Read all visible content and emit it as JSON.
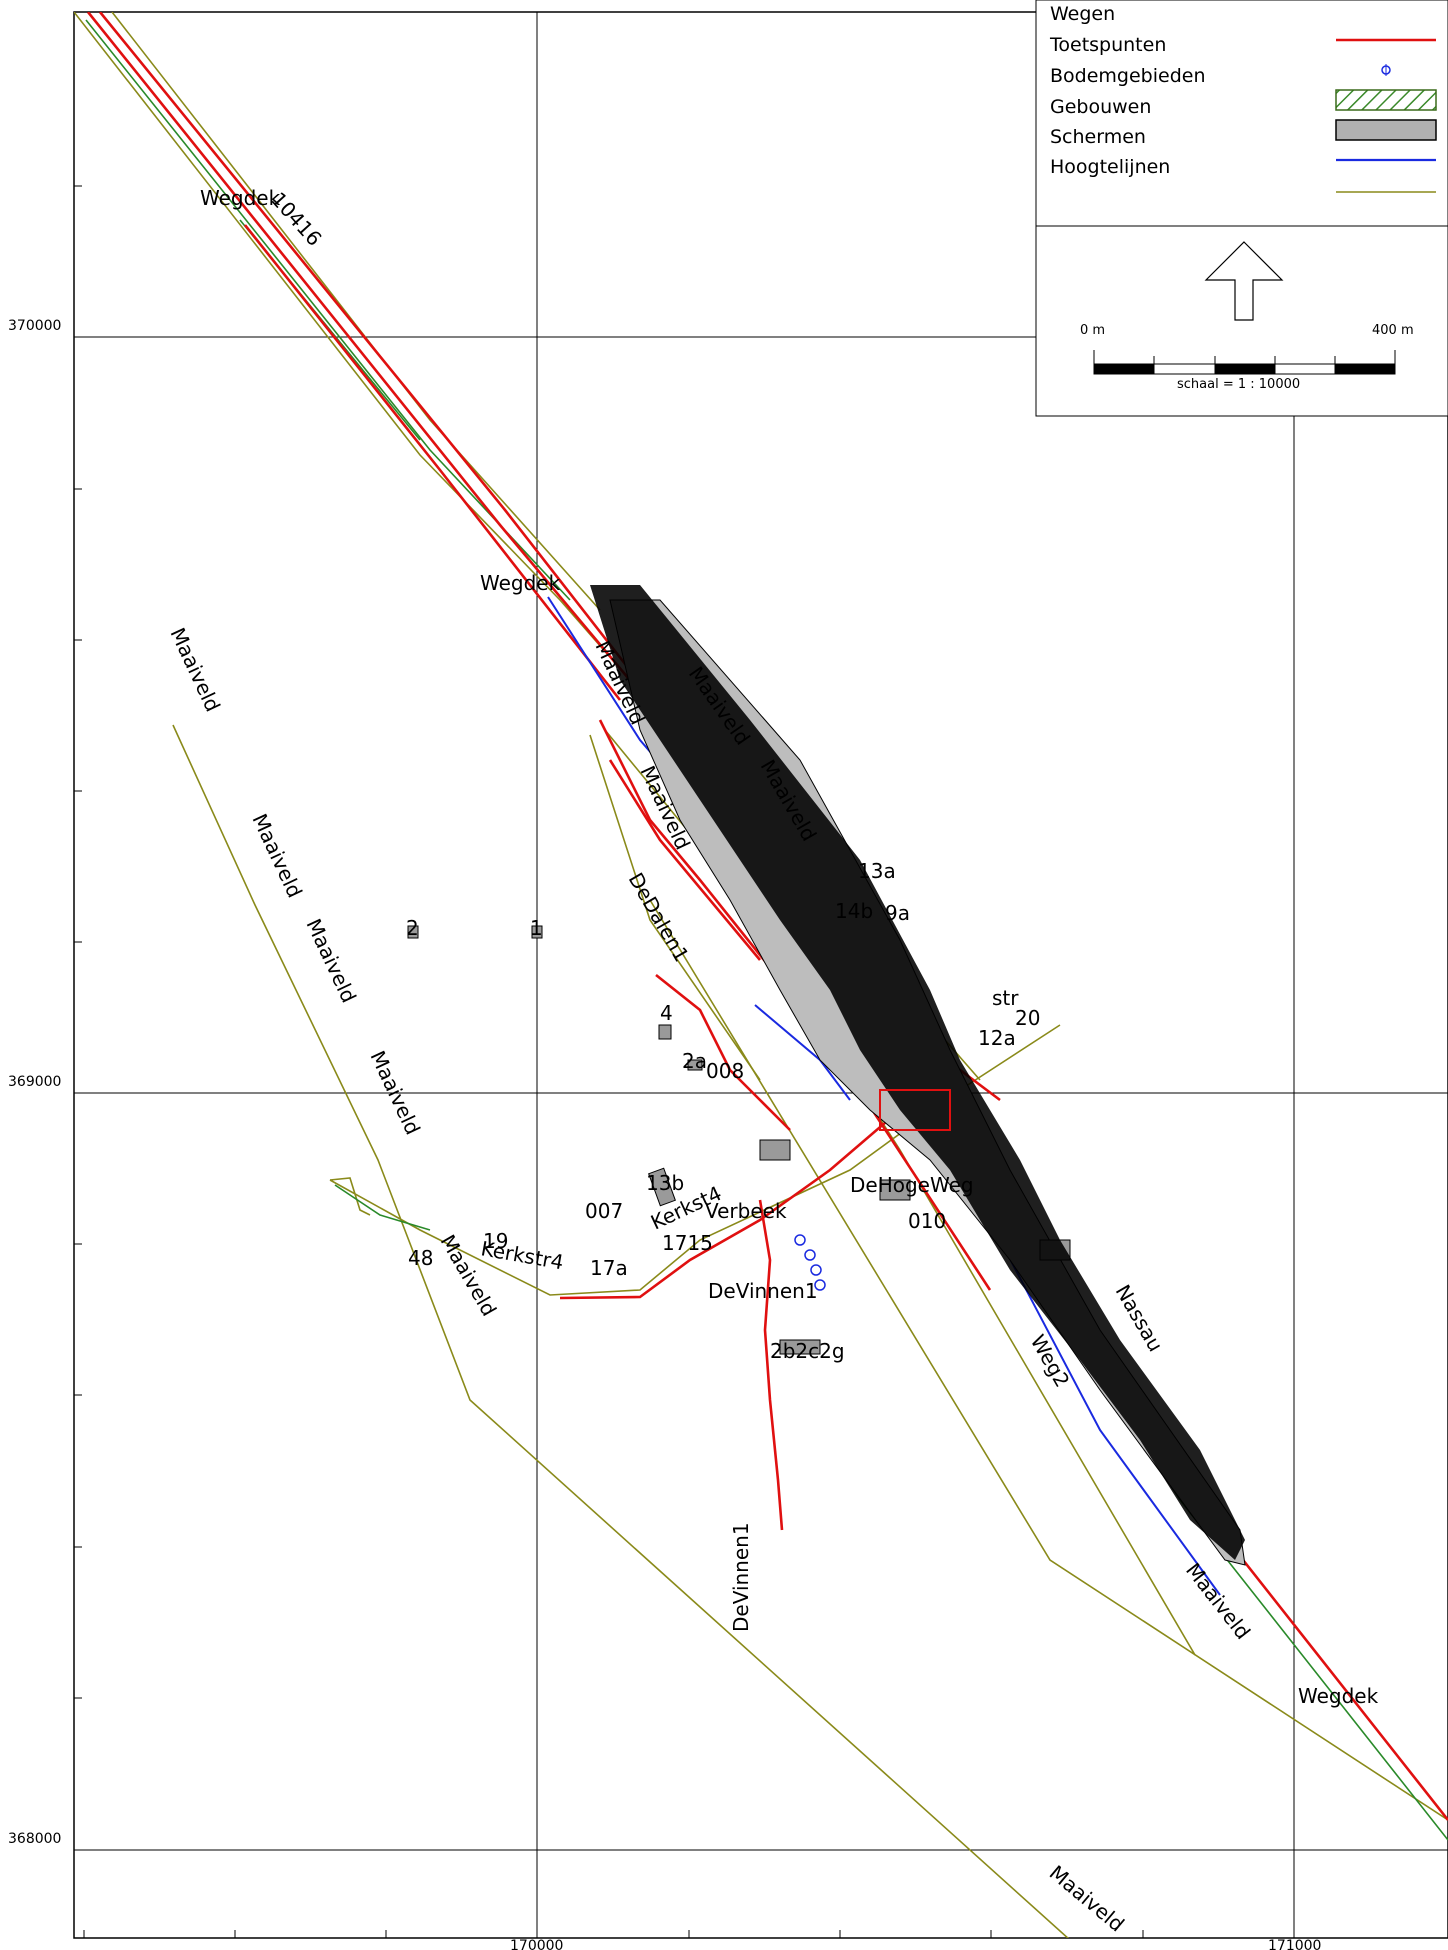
{
  "legend": {
    "items": [
      {
        "label": "Wegen",
        "symbol": "none"
      },
      {
        "label": "Toetspunten",
        "symbol": "red-line"
      },
      {
        "label": "Bodemgebieden",
        "symbol": "blue-point"
      },
      {
        "label": "Gebouwen",
        "symbol": "green-hatch-box"
      },
      {
        "label": "Schermen",
        "symbol": "grey-box"
      },
      {
        "label": "Hoogtelijnen",
        "symbol": "blue-line"
      },
      {
        "label": "",
        "symbol": "olive-line"
      }
    ]
  },
  "scale": {
    "start_label": "0 m",
    "end_label": "400 m",
    "caption": "schaal = 1 : 10000"
  },
  "axes": {
    "y_labels": [
      "370000",
      "369000",
      "368000"
    ],
    "x_labels": [
      "170000",
      "171000"
    ]
  },
  "map_labels": {
    "wegdek_1": "Wegdek",
    "road_code": "10416",
    "wegdek_2": "Wegdek",
    "wegdek_3": "Wegdek",
    "maaiveld_1": "Maaiveld",
    "maaiveld_2": "Maaiveld",
    "maaiveld_3": "Maaiveld",
    "maaiveld_4": "Maaiveld",
    "maaiveld_5": "Maaiveld",
    "maaiveld_6": "Maaiveld",
    "maaiveld_7": "Maaiveld",
    "maaiveld_8": "Maaiveld",
    "maaiveld_9": "Maaiveld",
    "maaiveld_10": "Maaiveld",
    "maaiveld_11": "Maaiveld",
    "dedalen": "DeDalen1",
    "devinnen_1": "DeVinnen1",
    "devinnen_2": "DeVinnen1",
    "kerkstr4": "Kerkstr4",
    "kerkstr4_b": "Kerkst4",
    "code_007": "007",
    "code_008": "008",
    "code_010": "010",
    "lbl_13b": "13b",
    "lbl_17a": "17a",
    "lbl_13a": "13a",
    "lbl_12a": "12a",
    "lbl_20": "20",
    "lbl_2a": "2a",
    "lbl_19": "19",
    "lbl_48": "48",
    "lbl_2": "2",
    "lbl_1": "1",
    "lbl_4": "4",
    "lbl_9a": "9a",
    "lbl_14b": "14b",
    "lbl_2b2c2g": "2b2c2g",
    "lbl_nassau": "Nassau",
    "lbl_verbeeck": "Verbeek",
    "lbl_hoge": "DeHogeWeg",
    "lbl_weg2": "Weg2",
    "lbl_1715": "1715",
    "lbl_str": "str"
  }
}
